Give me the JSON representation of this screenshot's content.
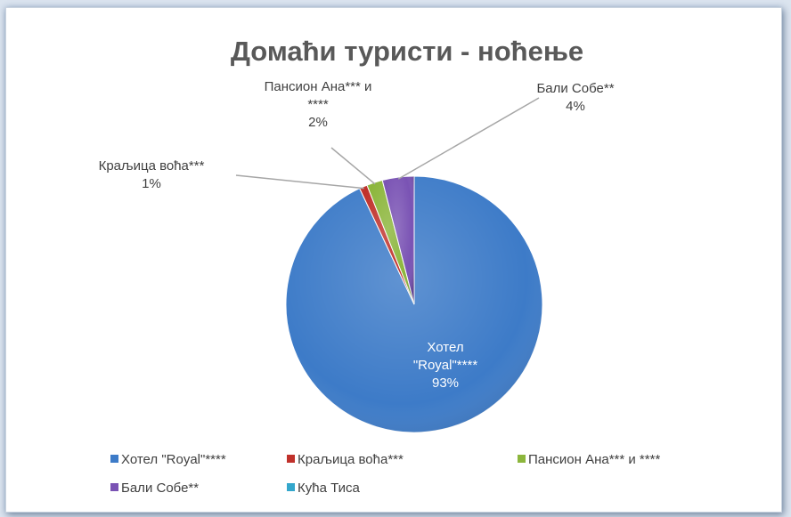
{
  "chart_data": {
    "type": "pie",
    "title": "Домаћи туристи - ноћење",
    "slices": [
      {
        "label": "Хотел \"Royal\"****",
        "value": 93,
        "display": "93%",
        "label_lines": [
          "Хотел",
          "\"Royal\"****"
        ],
        "color": "#3d7bc8"
      },
      {
        "label": "Краљица воћа***",
        "value": 1,
        "display": "1%",
        "label_lines": [
          "Краљица воћа***"
        ],
        "color": "#c0312b"
      },
      {
        "label": "Пансион Ана*** и ****",
        "value": 2,
        "display": "2%",
        "label_lines": [
          "Пансион Ана*** и",
          "****"
        ],
        "color": "#8cb63c"
      },
      {
        "label": "Бали Собе**",
        "value": 4,
        "display": "4%",
        "label_lines": [
          "Бали Собе**"
        ],
        "color": "#7a53b4"
      },
      {
        "label": "Кућа Тиса",
        "value": 0,
        "display": "",
        "label_lines": [],
        "color": "#34a7cc"
      }
    ],
    "legend_position": "bottom"
  }
}
